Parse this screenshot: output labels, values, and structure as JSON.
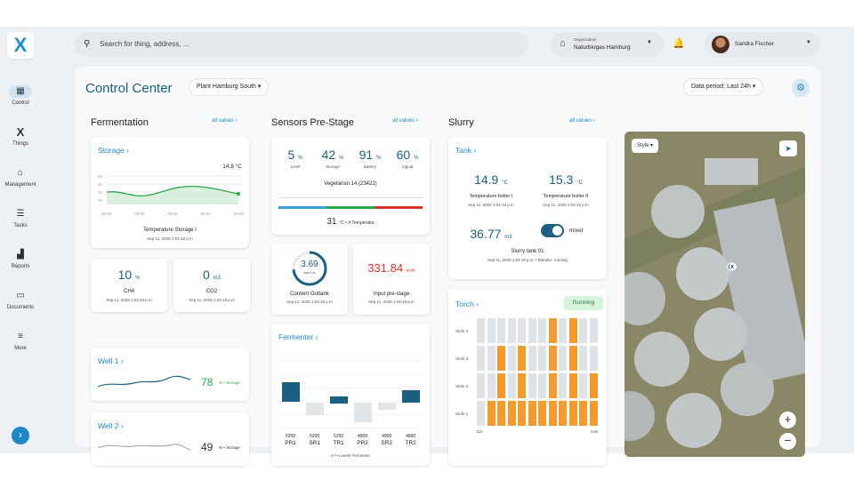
{
  "search": {
    "placeholder": "Search for thing, address, ..."
  },
  "org": {
    "caption": "Organization",
    "name": "Naturbiogas Hamburg"
  },
  "user": {
    "name": "Sandra Fischer"
  },
  "nav": [
    {
      "label": "Control"
    },
    {
      "label": "Things"
    },
    {
      "label": "Management"
    },
    {
      "label": "Tasks"
    },
    {
      "label": "Reports"
    },
    {
      "label": "Documents"
    },
    {
      "label": "More"
    }
  ],
  "page": {
    "title": "Control Center",
    "plant": "Plant Hamburg South",
    "period": "Data period: Last 24h"
  },
  "columns": {
    "fermentation": "Fermentation",
    "sensors": "Sensors Pre-Stage",
    "slurry": "Slurry",
    "all_values": "all values"
  },
  "storage": {
    "title": "Storage",
    "value": "14.8 °C",
    "caption": "Temperature Storage I",
    "time": "Sep 11, 2025 1:04:18 p.m",
    "y_ticks": [
      "25",
      "20",
      "15",
      "10"
    ],
    "x_ticks": [
      "08:00",
      "09:00",
      "09:10",
      "09:20",
      "09:30"
    ]
  },
  "ch4": {
    "value": "10",
    "unit": "%",
    "label": "CH4",
    "time": "Sep 11, 2025 1:04:18 p.m"
  },
  "co2": {
    "value": "0",
    "unit": "m3",
    "label": "CO2",
    "time": "Sep 11, 2025 1:04:18 p.m"
  },
  "well1": {
    "title": "Well 1",
    "value": "78",
    "unit": "% • Storage"
  },
  "well2": {
    "title": "Well 2",
    "value": "49",
    "unit": "% • Storage"
  },
  "sensors": {
    "items": [
      {
        "value": "5",
        "unit": "%",
        "label": "Level"
      },
      {
        "value": "42",
        "unit": "%",
        "label": "Storage"
      },
      {
        "value": "91",
        "unit": "%",
        "label": "Battery"
      },
      {
        "value": "60",
        "unit": "%",
        "label": "Signal"
      }
    ],
    "name": "Vegetarian 14 (23422)",
    "temp": "31",
    "temp_unit": "°C • # Temperatur"
  },
  "outtank": {
    "value": "3.69",
    "unit": "max 5 m³",
    "label": "Content Outtank",
    "time": "Sep 11, 2025 1:04:18 p.m"
  },
  "input": {
    "value": "331.84",
    "unit": "m³/h",
    "label": "Input pre-stage",
    "time": "Sep 11, 2025 1:04:18 p.m"
  },
  "fermenter": {
    "title": "Fermenter",
    "caption": "m³ • Levels Fermenter",
    "labels": [
      "PR1",
      "SR1",
      "TR1",
      "PR2",
      "SR2",
      "TR2"
    ],
    "values": [
      "5200",
      "5200",
      "5200",
      "4900",
      "4900",
      "4900"
    ]
  },
  "tank": {
    "title": "Tank",
    "t1": "14.9",
    "t1_unit": "°C",
    "t1_label": "Temperature boiler I",
    "t2": "15.3",
    "t2_unit": "°C",
    "t2_label": "Temperature boiler II",
    "time": "Sep 11, 2025 1:04:18 p.m",
    "level": "36.77",
    "level_unit": "m3",
    "mixer": "mixer",
    "caption": "Slurry tank 01",
    "time2": "Sep 11, 2025 1:04:18 p.m. • Blender: running"
  },
  "torch": {
    "title": "Torch",
    "status": "Running",
    "stages": [
      "Stufe 4",
      "Stufe 3",
      "Stufe 2",
      "Stufe 1"
    ],
    "start": "-11h",
    "end": "now"
  },
  "map": {
    "style": "Style",
    "zoom_in": "+",
    "zoom_out": "−"
  },
  "colors": {
    "accent": "#1e89c8",
    "green": "#2aa84a",
    "red": "#d9342b",
    "orange": "#f29b2f"
  }
}
